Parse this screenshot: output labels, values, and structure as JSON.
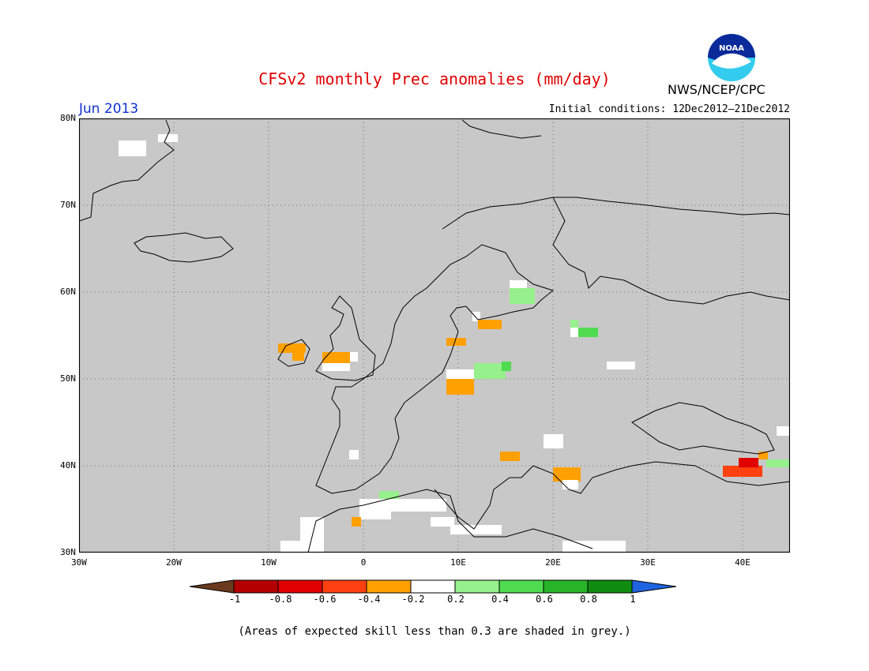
{
  "title": "CFSv2 monthly Prec anomalies (mm/day)",
  "agency": "NWS/NCEP/CPC",
  "logo_text": "NOAA",
  "month": "Jun 2013",
  "initial_conditions": "Initial conditions: 12Dec2012–21Dec2012",
  "footnote": "(Areas of expected skill less than 0.3 are shaded in grey.)",
  "map": {
    "lon_range": [
      -30,
      45
    ],
    "lat_range": [
      30,
      80
    ],
    "background_color": "#c8c8c8",
    "lat_labels": [
      "80N",
      "70N",
      "60N",
      "50N",
      "40N",
      "30N"
    ],
    "lon_labels": [
      "30W",
      "20W",
      "10W",
      "0",
      "10E",
      "20E",
      "30E",
      "40E"
    ],
    "gridlines": "dotted"
  },
  "colorbar": {
    "ticks": [
      "-1",
      "-0.8",
      "-0.6",
      "-0.4",
      "-0.2",
      "0.2",
      "0.4",
      "0.6",
      "0.8",
      "1"
    ],
    "colors": [
      "#6b3a1e",
      "#b40000",
      "#e00000",
      "#ff4010",
      "#ffa000",
      "#ffffff",
      "#96f08c",
      "#50dc50",
      "#28b428",
      "#108c10",
      "#1e64e0"
    ]
  }
}
